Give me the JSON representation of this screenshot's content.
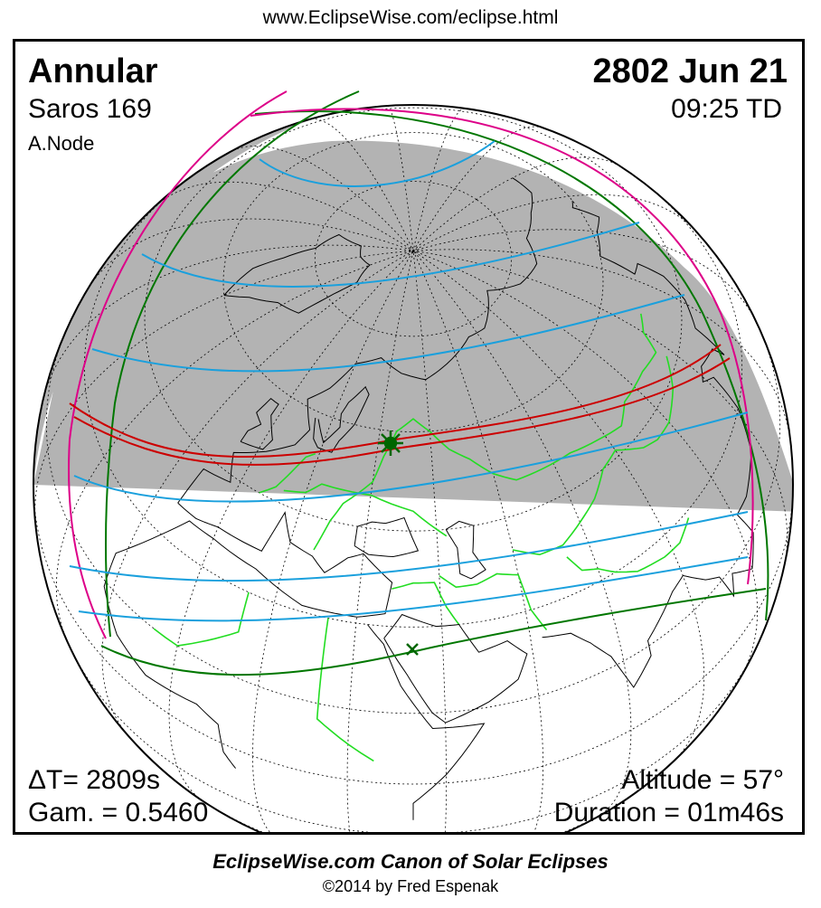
{
  "header": {
    "url": "www.EclipseWise.com/eclipse.html"
  },
  "eclipse": {
    "type": "Annular",
    "date": "2802 Jun 21",
    "saros": "Saros 169",
    "time": "09:25 TD",
    "node": "A.Node",
    "delta_t": "ΔT=   2809s",
    "gamma": "Gam. = 0.5460",
    "altitude": "Altitude = 57°",
    "duration": "Duration = 01m46s"
  },
  "footer": {
    "canon": "EclipseWise.com Canon of Solar Eclipses",
    "copyright": "©2014 by Fred Espenak"
  },
  "map": {
    "projection": "orthographic",
    "center_lon": 40,
    "center_lat": 52,
    "colors": {
      "land": "#22dd22",
      "graticule": "#000000",
      "night": "#b3b3b3",
      "penumbral_limit": "#007700",
      "rise_set": "#dd0088",
      "magnitude_lines": "#1aa0dd",
      "central_path": "#cc0000",
      "greatest_eclipse": "#006600"
    },
    "greatest_eclipse_symbol": "star",
    "greatest_duration_symbol": "x"
  }
}
